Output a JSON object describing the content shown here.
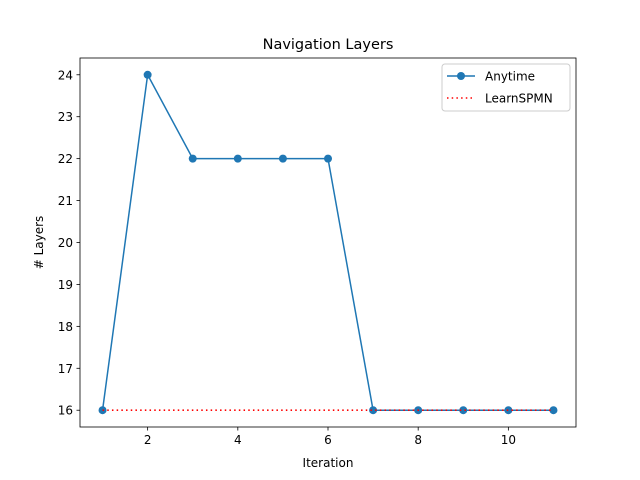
{
  "chart_data": {
    "type": "line",
    "title": "Navigation Layers",
    "xlabel": "Iteration",
    "ylabel": "# Layers",
    "xlim": [
      0.5,
      11.5
    ],
    "ylim": [
      15.6,
      24.4
    ],
    "xticks": [
      2,
      4,
      6,
      8,
      10
    ],
    "yticks": [
      16,
      17,
      18,
      19,
      20,
      21,
      22,
      23,
      24
    ],
    "grid": false,
    "legend_position": "top-right",
    "x": [
      1,
      2,
      3,
      4,
      5,
      6,
      7,
      8,
      9,
      10,
      11
    ],
    "series": [
      {
        "name": "Anytime",
        "style": "solid-with-circle-markers",
        "color": "#1f77b4",
        "values": [
          16,
          24,
          22,
          22,
          22,
          22,
          16,
          16,
          16,
          16,
          16
        ]
      },
      {
        "name": "LearnSPMN",
        "style": "dotted",
        "color": "#ff0000",
        "values": [
          16,
          16,
          16,
          16,
          16,
          16,
          16,
          16,
          16,
          16,
          16
        ]
      }
    ]
  }
}
